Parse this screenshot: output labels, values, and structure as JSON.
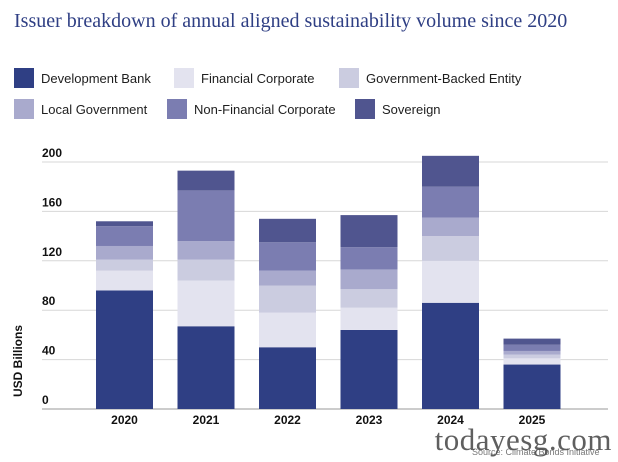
{
  "page": {
    "title": "Issuer breakdown of annual aligned sustainability volume since 2020",
    "source": "Source: Climate Bonds Initiative",
    "watermark": "todayesg.com"
  },
  "chart_data": {
    "type": "bar",
    "stacked": true,
    "title": "Issuer breakdown of annual aligned sustainability volume since 2020",
    "xlabel": "",
    "ylabel": "USD Billions",
    "ylim": [
      0,
      200
    ],
    "yticks": [
      0,
      40,
      80,
      120,
      160,
      200
    ],
    "categories": [
      "2020",
      "2021",
      "2022",
      "2023",
      "2024",
      "2025"
    ],
    "series": [
      {
        "name": "Development Bank",
        "color": "#2f3f84",
        "values": [
          96,
          67,
          50,
          64,
          86,
          36
        ]
      },
      {
        "name": "Financial Corporate",
        "color": "#e3e3ef",
        "values": [
          16,
          37,
          28,
          18,
          34,
          5
        ]
      },
      {
        "name": "Government-Backed Entity",
        "color": "#cbcce0",
        "values": [
          9,
          17,
          22,
          15,
          20,
          3
        ]
      },
      {
        "name": "Local Government",
        "color": "#a9aacd",
        "values": [
          11,
          15,
          12,
          16,
          15,
          3
        ]
      },
      {
        "name": "Non-Financial Corporate",
        "color": "#7b7db1",
        "values": [
          16,
          41,
          23,
          18,
          25,
          5
        ]
      },
      {
        "name": "Sovereign",
        "color": "#50558f",
        "values": [
          4,
          16,
          19,
          26,
          25,
          5
        ]
      }
    ],
    "grid": true,
    "legend": "top"
  }
}
